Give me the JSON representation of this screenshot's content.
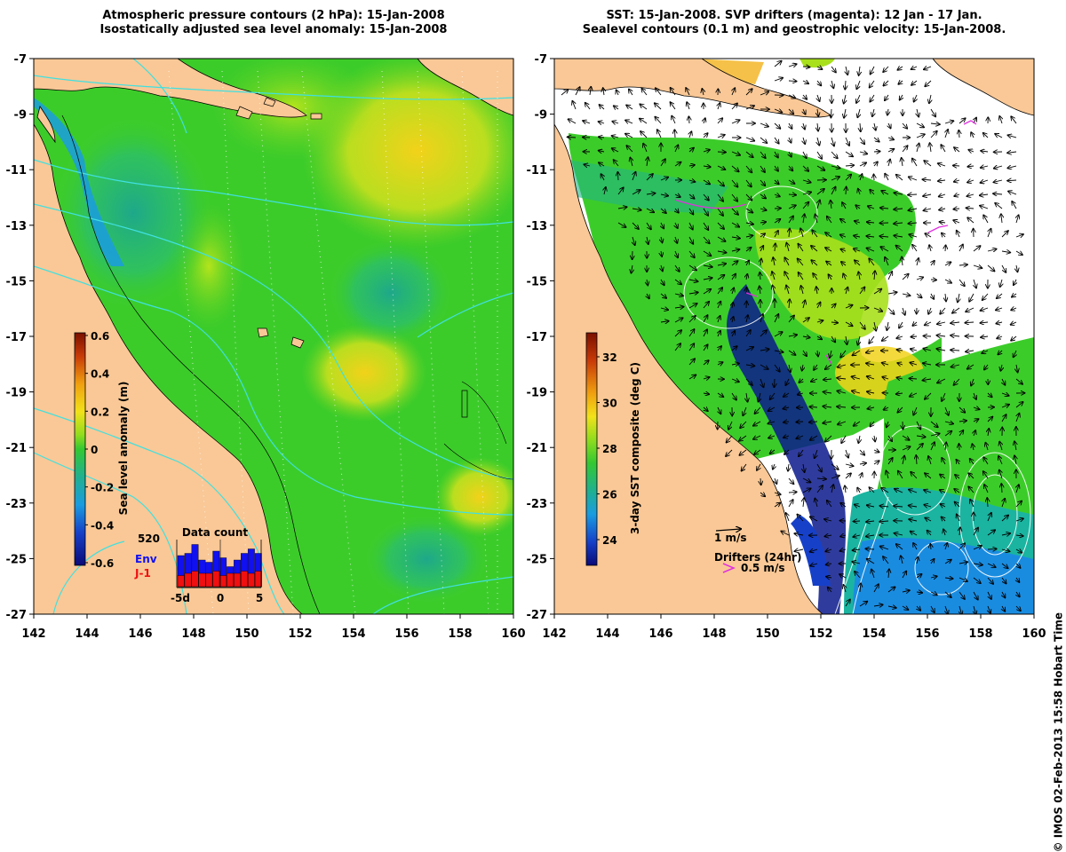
{
  "left_panel": {
    "title_line1": "Atmospheric pressure contours (2 hPa): 15-Jan-2008",
    "title_line2": "Isostatically adjusted sea level anomaly: 15-Jan-2008",
    "colorbar_label": "Sea level anomaly (m)",
    "colorbar_ticks": [
      "0.6",
      "0.4",
      "0.2",
      "0",
      "-0.2",
      "-0.4",
      "-0.6"
    ],
    "inset": {
      "title": "Data count",
      "count": "520",
      "env_label": "Env",
      "j1_label": "J-1",
      "x_ticks": [
        "-5d",
        "0",
        "5"
      ],
      "env_color": "#1010f0",
      "j1_color": "#f01010",
      "env_bars": [
        0.7,
        0.75,
        0.95,
        0.6,
        0.55,
        0.8,
        0.65,
        0.45,
        0.6,
        0.75,
        0.85,
        0.75
      ],
      "j1_bars": [
        0.25,
        0.3,
        0.35,
        0.3,
        0.3,
        0.35,
        0.25,
        0.3,
        0.3,
        0.35,
        0.3,
        0.35
      ]
    }
  },
  "right_panel": {
    "title_line1": "SST: 15-Jan-2008. SVP drifters (magenta): 12 Jan - 17 Jan.",
    "title_line2": "Sealevel contours (0.1 m) and geostrophic velocity: 15-Jan-2008.",
    "colorbar_label": "3-day SST composite (deg C)",
    "colorbar_ticks": [
      "32",
      "30",
      "28",
      "26",
      "24"
    ],
    "velocity_scale_label": "1 m/s",
    "drifters_label": "Drifters (24hr)",
    "drifter_scale_label": "0.5 m/s",
    "drifter_color": "#e030e0"
  },
  "axes": {
    "x_ticks": [
      "142",
      "144",
      "146",
      "148",
      "150",
      "152",
      "154",
      "156",
      "158",
      "160"
    ],
    "y_ticks": [
      "-7",
      "-9",
      "-11",
      "-13",
      "-15",
      "-17",
      "-19",
      "-21",
      "-23",
      "-25",
      "-27"
    ]
  },
  "colors": {
    "land": "#f9c896",
    "ocean_green": "#3ccc2a",
    "yellow_green": "#a8e01c",
    "yellow": "#f2d21a",
    "teal": "#22b487",
    "blue": "#1a8ce0",
    "dark_blue": "#0a1a8c",
    "pressure_contour": "#40e0e0"
  },
  "watermark": "© IMOS 02-Feb-2013 15:58 Hobart Time"
}
